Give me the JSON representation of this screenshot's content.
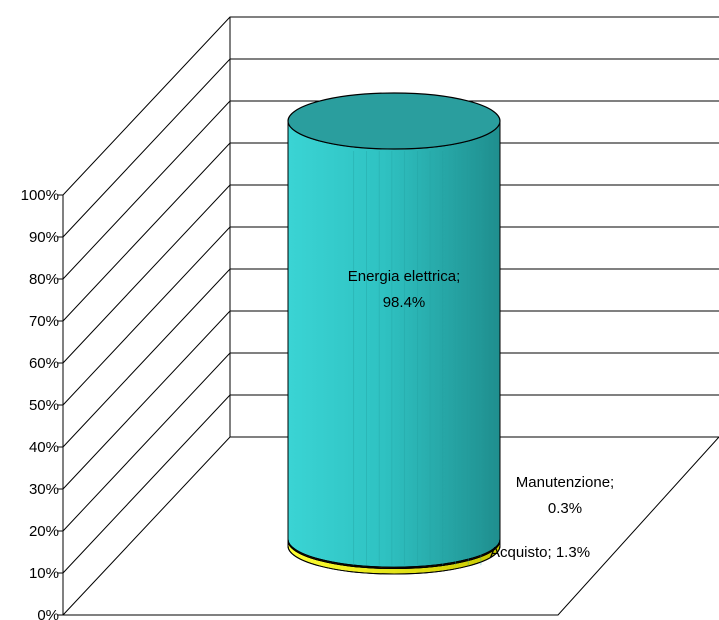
{
  "chart_data": {
    "type": "bar",
    "variant": "3d-stacked-cylinder-100-percent",
    "title": "",
    "xlabel": "",
    "ylabel": "",
    "ylim": [
      0,
      100
    ],
    "y_ticks": [
      "0%",
      "10%",
      "20%",
      "30%",
      "40%",
      "50%",
      "60%",
      "70%",
      "80%",
      "90%",
      "100%"
    ],
    "grid": true,
    "legend": "none",
    "series": [
      {
        "name": "Acquisto",
        "value": 1.3,
        "color": "#ffff00",
        "label": [
          "Acquisto; 1.3%"
        ]
      },
      {
        "name": "Manutenzione",
        "value": 0.3,
        "color": "#ff6600",
        "label": [
          "Manutenzione;",
          "0.3%"
        ]
      },
      {
        "name": "Energia elettrica",
        "value": 98.4,
        "color": "#33cccc",
        "label": [
          "Energia elettrica;",
          "98.4%"
        ]
      }
    ]
  }
}
